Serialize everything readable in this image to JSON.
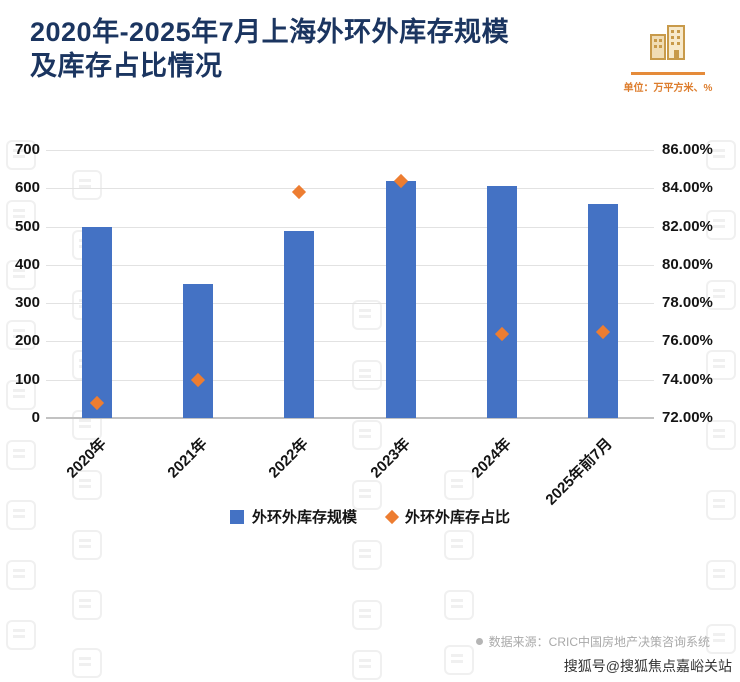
{
  "header": {
    "title_line1": "2020年-2025年7月上海外环外库存规模",
    "title_line2": "及库存占比情况",
    "unit_label": "单位：万平方米、%"
  },
  "chart_data": {
    "type": "bar",
    "categories": [
      "2020年",
      "2021年",
      "2022年",
      "2023年",
      "2024年",
      "2025年前7月"
    ],
    "series": [
      {
        "name": "外环外库存规模",
        "type": "bar",
        "axis": "left",
        "color": "#4472c4",
        "values": [
          498,
          350,
          489,
          620,
          605,
          560
        ]
      },
      {
        "name": "外环外库存占比",
        "type": "scatter",
        "marker": "diamond",
        "axis": "right",
        "color": "#ed7d31",
        "values": [
          72.8,
          74.0,
          83.8,
          84.4,
          76.4,
          76.5
        ]
      }
    ],
    "left_axis": {
      "min": 0,
      "max": 700,
      "step": 100,
      "labels": [
        "0",
        "100",
        "200",
        "300",
        "400",
        "500",
        "600",
        "700"
      ]
    },
    "right_axis": {
      "min": 72,
      "max": 86,
      "step": 2,
      "labels": [
        "72.00%",
        "74.00%",
        "76.00%",
        "78.00%",
        "80.00%",
        "82.00%",
        "84.00%",
        "86.00%"
      ]
    },
    "grid": true,
    "legend_position": "bottom",
    "title": "2020年-2025年7月上海外环外库存规模及库存占比情况",
    "xlabel": "",
    "ylabel_left": "万平方米",
    "ylabel_right": "%"
  },
  "footer": {
    "source": "数据来源：CRIC中国房地产决策咨询系统",
    "credit": "搜狐号@搜狐焦点嘉峪关站"
  },
  "colors": {
    "bar": "#4472c4",
    "diamond": "#ed7d31",
    "title": "#1b3560",
    "unit_accent": "#e58b3a"
  }
}
